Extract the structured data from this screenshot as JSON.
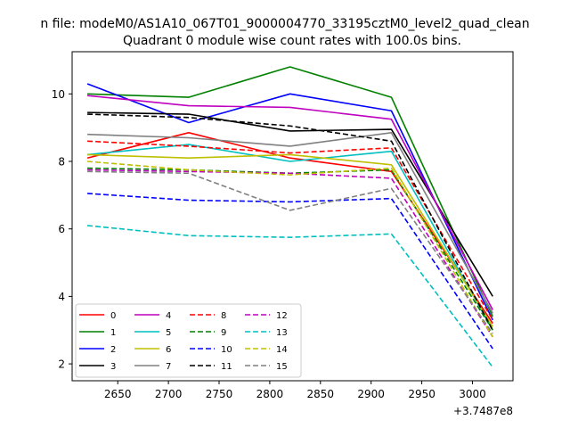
{
  "chart_data": {
    "type": "line",
    "suptitle": "n file: modeM0/AS1A10_067T01_9000004770_33195cztM0_level2_quad_clean",
    "title": "Quadrant 0 module wise count rates with 100.0s bins.",
    "xlabel": "",
    "ylabel": "",
    "x_offset_label": "+3.7487e8",
    "x": [
      2620,
      2720,
      2820,
      2920,
      3020
    ],
    "xlim": [
      2605,
      3040
    ],
    "ylim": [
      1.5,
      11.25
    ],
    "xticks": [
      2650,
      2700,
      2750,
      2800,
      2850,
      2900,
      2950,
      3000
    ],
    "xtick_labels": [
      "2650",
      "2700",
      "2750",
      "2800",
      "2850",
      "2900",
      "2950",
      "3000"
    ],
    "yticks": [
      2,
      4,
      6,
      8,
      10
    ],
    "ytick_labels": [
      "2",
      "4",
      "6",
      "8",
      "10"
    ],
    "legend_position": "lower-left",
    "legend_columns": 4,
    "series": [
      {
        "name": "0",
        "color": "#ff0000",
        "dash": "solid",
        "values": [
          8.1,
          8.85,
          8.1,
          7.7,
          3.2
        ]
      },
      {
        "name": "1",
        "color": "#008000",
        "dash": "solid",
        "values": [
          10.0,
          9.9,
          10.8,
          9.9,
          3.4
        ]
      },
      {
        "name": "2",
        "color": "#0000ff",
        "dash": "solid",
        "values": [
          10.3,
          9.15,
          10.0,
          9.5,
          3.3
        ]
      },
      {
        "name": "3",
        "color": "#000000",
        "dash": "solid",
        "values": [
          9.45,
          9.4,
          8.9,
          8.95,
          4.0
        ]
      },
      {
        "name": "4",
        "color": "#bf00bf",
        "dash": "solid",
        "values": [
          9.95,
          9.65,
          9.6,
          9.25,
          3.6
        ]
      },
      {
        "name": "5",
        "color": "#00bfbf",
        "dash": "solid",
        "values": [
          8.2,
          8.5,
          8.0,
          8.3,
          3.0
        ]
      },
      {
        "name": "6",
        "color": "#bfbf00",
        "dash": "solid",
        "values": [
          8.2,
          8.1,
          8.2,
          7.9,
          3.1
        ]
      },
      {
        "name": "7",
        "color": "#808080",
        "dash": "solid",
        "values": [
          8.8,
          8.7,
          8.45,
          8.85,
          3.5
        ]
      },
      {
        "name": "8",
        "color": "#ff0000",
        "dash": "dashed",
        "values": [
          8.6,
          8.45,
          8.25,
          8.4,
          3.3
        ]
      },
      {
        "name": "9",
        "color": "#008000",
        "dash": "dashed",
        "values": [
          7.8,
          7.75,
          7.65,
          7.75,
          3.0
        ]
      },
      {
        "name": "10",
        "color": "#0000ff",
        "dash": "dashed",
        "values": [
          7.05,
          6.85,
          6.8,
          6.9,
          2.45
        ]
      },
      {
        "name": "11",
        "color": "#000000",
        "dash": "dashed",
        "values": [
          9.4,
          9.3,
          9.05,
          8.6,
          3.0
        ]
      },
      {
        "name": "12",
        "color": "#bf00bf",
        "dash": "dashed",
        "values": [
          7.75,
          7.7,
          7.65,
          7.5,
          2.8
        ]
      },
      {
        "name": "13",
        "color": "#00bfbf",
        "dash": "dashed",
        "values": [
          6.1,
          5.8,
          5.75,
          5.85,
          1.9
        ]
      },
      {
        "name": "14",
        "color": "#bfbf00",
        "dash": "dashed",
        "values": [
          8.0,
          7.75,
          7.6,
          7.8,
          2.8
        ]
      },
      {
        "name": "15",
        "color": "#808080",
        "dash": "dashed",
        "values": [
          7.7,
          7.65,
          6.55,
          7.2,
          2.9
        ]
      }
    ]
  }
}
